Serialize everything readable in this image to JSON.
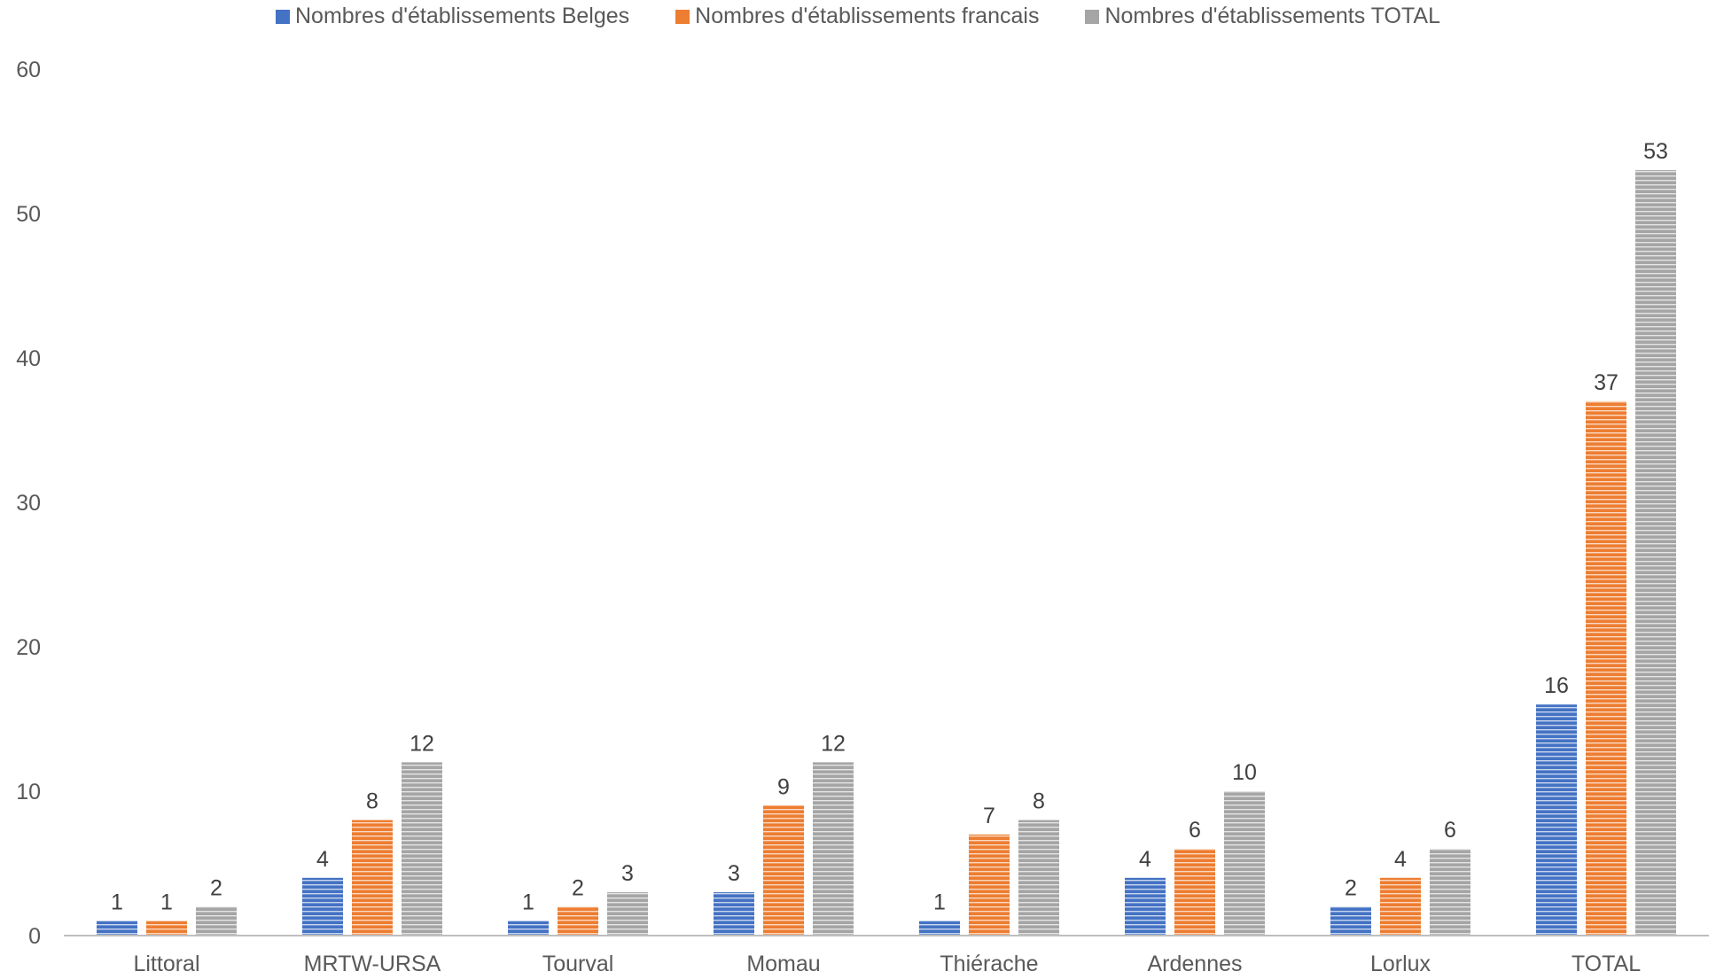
{
  "chart_data": {
    "type": "bar",
    "categories": [
      "Littoral",
      "MRTW-URSA",
      "Tourval",
      "Momau",
      "Thiérache",
      "Ardennes",
      "Lorlux",
      "TOTAL"
    ],
    "series": [
      {
        "name": "Nombres d'établissements Belges",
        "values": [
          1,
          4,
          1,
          3,
          1,
          4,
          2,
          16
        ],
        "color": "#4472c4"
      },
      {
        "name": "Nombres d'établissements francais",
        "values": [
          1,
          8,
          2,
          9,
          7,
          6,
          4,
          37
        ],
        "color": "#ed7d31"
      },
      {
        "name": "Nombres d'établissements TOTAL",
        "values": [
          2,
          12,
          3,
          12,
          8,
          10,
          6,
          53
        ],
        "color": "#a5a5a5"
      }
    ],
    "ylim": [
      0,
      60
    ],
    "yticks": [
      0,
      10,
      20,
      30,
      40,
      50,
      60
    ],
    "title": "",
    "xlabel": "",
    "ylabel": "",
    "legend_position": "top",
    "grid": false,
    "data_labels": true
  }
}
